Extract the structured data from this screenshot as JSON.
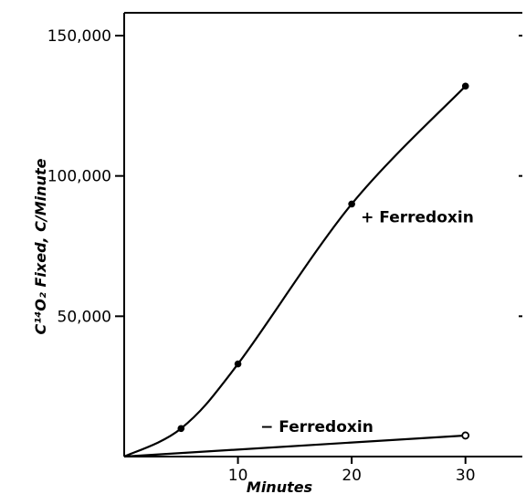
{
  "chart_data": {
    "type": "line",
    "xlabel": "Minutes",
    "ylabel": "C¹⁴O₂ Fixed, C/Minute",
    "xlim": [
      0,
      35
    ],
    "ylim": [
      0,
      150000
    ],
    "xticks": [
      10,
      20,
      30
    ],
    "xtick_labels": [
      "10",
      "20",
      "30"
    ],
    "yticks": [
      50000,
      100000,
      150000
    ],
    "ytick_labels": [
      "50,000",
      "100,000",
      "150,000"
    ],
    "grid": false,
    "series": [
      {
        "name": "+ Ferredoxin",
        "marker": "filled-circle",
        "x": [
          0,
          5,
          10,
          20,
          30
        ],
        "y": [
          0,
          10000,
          33000,
          90000,
          132000
        ]
      },
      {
        "name": "− Ferredoxin",
        "marker": "open-circle",
        "x": [
          0,
          30
        ],
        "y": [
          0,
          7500
        ]
      }
    ],
    "annotations": [
      {
        "text": "+ Ferredoxin",
        "series": 0
      },
      {
        "text": "− Ferredoxin",
        "series": 1
      }
    ]
  },
  "colors": {
    "ink": "#000000",
    "background": "#ffffff"
  }
}
